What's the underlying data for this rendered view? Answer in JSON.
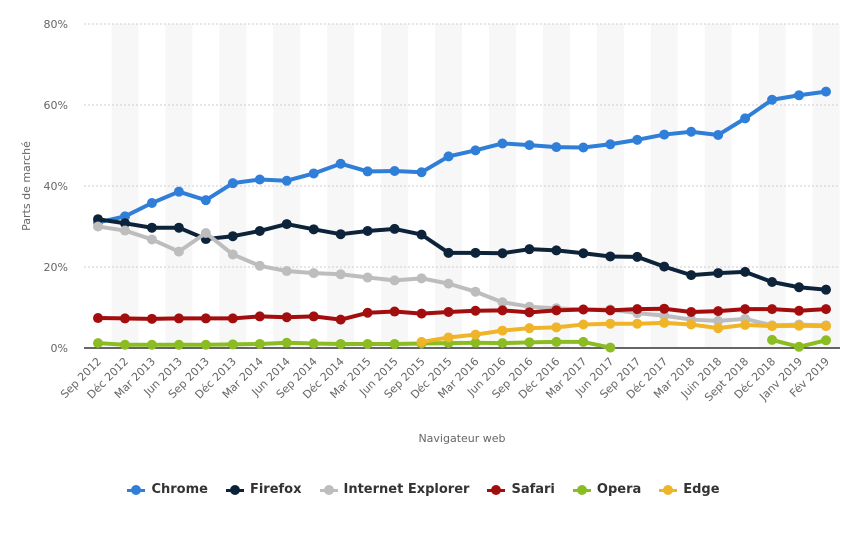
{
  "chart_data": {
    "type": "line",
    "xlabel": "Navigateur web",
    "ylabel": "Parts de marché",
    "ylim": [
      0,
      80
    ],
    "yticks": [
      "0%",
      "20%",
      "40%",
      "60%",
      "80%"
    ],
    "ytick_values": [
      0,
      20,
      40,
      60,
      80
    ],
    "grid": true,
    "legend_position": "bottom",
    "categories": [
      "Sep 2012",
      "Déc 2012",
      "Mar 2013",
      "Jun 2013",
      "Sep 2013",
      "Déc 2013",
      "Mar 2014",
      "Jun 2014",
      "Sep 2014",
      "Déc 2014",
      "Mar 2015",
      "Jun 2015",
      "Sep 2015",
      "Déc 2015",
      "Mar 2016",
      "Jun 2016",
      "Sep 2016",
      "Déc 2016",
      "Mar 2017",
      "Jun 2017",
      "Sep 2017",
      "Déc 2017",
      "Mar 2018",
      "Juin 2018",
      "Sept 2018",
      "Déc 2018",
      "Janv 2019",
      "Fév 2019"
    ],
    "series": [
      {
        "name": "Chrome",
        "color": "#2f7ed8",
        "values": [
          31,
          32.5,
          35.8,
          38.6,
          36.5,
          40.7,
          41.6,
          41.3,
          43.1,
          45.5,
          43.6,
          43.7,
          43.4,
          47.3,
          48.8,
          50.5,
          50.1,
          49.6,
          49.5,
          50.3,
          51.4,
          52.7,
          53.4,
          52.6,
          56.7,
          61.3,
          62.4,
          63.3
        ]
      },
      {
        "name": "Firefox",
        "color": "#0d233a",
        "values": [
          31.8,
          30.8,
          29.7,
          29.7,
          26.9,
          27.6,
          28.9,
          30.6,
          29.3,
          28.1,
          28.9,
          29.4,
          28.0,
          23.5,
          23.5,
          23.4,
          24.4,
          24.1,
          23.4,
          22.6,
          22.5,
          20.1,
          18.0,
          18.5,
          18.8,
          16.3,
          15.0,
          14.4
        ]
      },
      {
        "name": "Internet Explorer",
        "color": "#bdbdbd",
        "values": [
          30.0,
          29.0,
          26.8,
          23.8,
          28.4,
          23.1,
          20.3,
          19.0,
          18.5,
          18.2,
          17.4,
          16.7,
          17.2,
          15.9,
          13.9,
          11.3,
          10.2,
          9.8,
          9.5,
          9.5,
          8.6,
          8.0,
          7.0,
          6.7,
          7.2,
          5.6,
          5.8,
          5.6
        ]
      },
      {
        "name": "Safari",
        "color": "#a30d0d",
        "values": [
          7.4,
          7.3,
          7.2,
          7.3,
          7.3,
          7.3,
          7.8,
          7.6,
          7.8,
          7.0,
          8.7,
          9.0,
          8.5,
          8.9,
          9.2,
          9.3,
          8.8,
          9.3,
          9.5,
          9.3,
          9.6,
          9.7,
          8.9,
          9.1,
          9.6,
          9.6,
          9.2,
          9.6
        ]
      },
      {
        "name": "Opera",
        "color": "#8bbc21",
        "values": [
          1.2,
          0.8,
          0.8,
          0.8,
          0.8,
          0.9,
          1.0,
          1.3,
          1.1,
          1.0,
          1.0,
          1.0,
          1.1,
          1.2,
          1.3,
          1.2,
          1.4,
          1.5,
          1.5,
          0.1,
          null,
          null,
          null,
          null,
          null,
          2.0,
          0.3,
          1.9
        ]
      },
      {
        "name": "Edge",
        "color": "#f0b429",
        "values": [
          null,
          null,
          null,
          null,
          null,
          null,
          null,
          null,
          null,
          null,
          null,
          null,
          1.5,
          2.6,
          3.3,
          4.3,
          4.9,
          5.1,
          5.8,
          6.0,
          6.0,
          6.2,
          5.8,
          4.9,
          5.7,
          5.4,
          5.5,
          5.4
        ]
      }
    ]
  }
}
